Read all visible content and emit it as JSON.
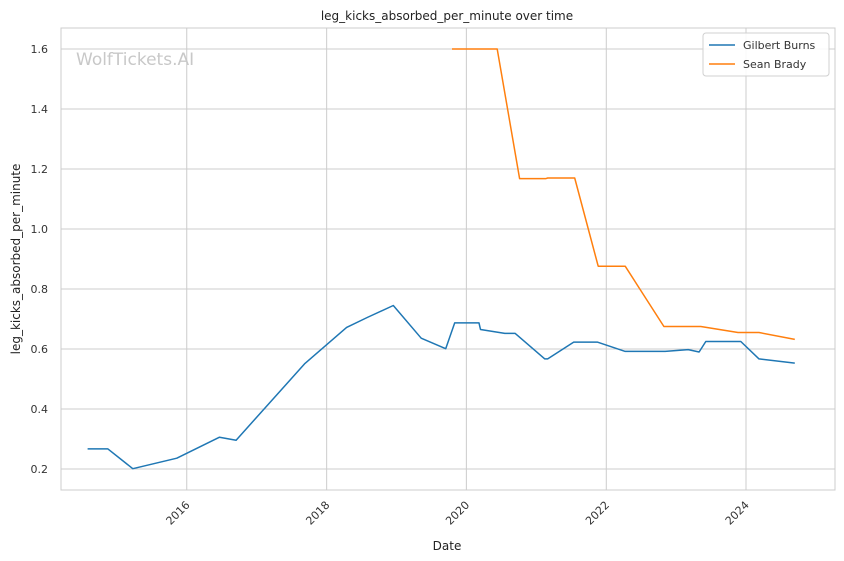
{
  "chart_data": {
    "type": "line",
    "title": "leg_kicks_absorbed_per_minute over time",
    "xlabel": "Date",
    "ylabel": "leg_kicks_absorbed_per_minute",
    "watermark": "WolfTickets.AI",
    "xlim": [
      "2014-03-15",
      "2025-04-10"
    ],
    "ylim": [
      0.13,
      1.67
    ],
    "x_ticks": [
      {
        "date": "2016-01-01",
        "label": "2016"
      },
      {
        "date": "2018-01-01",
        "label": "2018"
      },
      {
        "date": "2020-01-01",
        "label": "2020"
      },
      {
        "date": "2022-01-01",
        "label": "2022"
      },
      {
        "date": "2024-01-01",
        "label": "2024"
      }
    ],
    "y_ticks": [
      0.2,
      0.4,
      0.6,
      0.8,
      1.0,
      1.2,
      1.4,
      1.6
    ],
    "y_tick_labels": [
      "0.2",
      "0.4",
      "0.6",
      "0.8",
      "1.0",
      "1.2",
      "1.4",
      "1.6"
    ],
    "grid": true,
    "legend_position": "top-right",
    "series": [
      {
        "name": "Gilbert Burns",
        "color": "#1f77b4",
        "points": [
          [
            "2014-08-01",
            0.267
          ],
          [
            "2014-11-15",
            0.267
          ],
          [
            "2015-03-25",
            0.201
          ],
          [
            "2015-11-10",
            0.236
          ],
          [
            "2016-06-20",
            0.306
          ],
          [
            "2016-09-15",
            0.296
          ],
          [
            "2017-09-10",
            0.552
          ],
          [
            "2018-04-15",
            0.672
          ],
          [
            "2018-08-01",
            0.705
          ],
          [
            "2018-12-15",
            0.745
          ],
          [
            "2019-05-10",
            0.636
          ],
          [
            "2019-09-15",
            0.601
          ],
          [
            "2019-11-01",
            0.687
          ],
          [
            "2020-03-07",
            0.687
          ],
          [
            "2020-03-15",
            0.665
          ],
          [
            "2020-07-20",
            0.652
          ],
          [
            "2020-09-12",
            0.652
          ],
          [
            "2021-02-14",
            0.567
          ],
          [
            "2021-03-01",
            0.567
          ],
          [
            "2021-07-15",
            0.623
          ],
          [
            "2021-11-15",
            0.623
          ],
          [
            "2022-04-10",
            0.592
          ],
          [
            "2022-11-05",
            0.592
          ],
          [
            "2023-03-05",
            0.598
          ],
          [
            "2023-05-01",
            0.59
          ],
          [
            "2023-06-05",
            0.625
          ],
          [
            "2023-12-05",
            0.625
          ],
          [
            "2024-03-09",
            0.567
          ],
          [
            "2024-09-12",
            0.553
          ]
        ]
      },
      {
        "name": "Sean Brady",
        "color": "#ff7f0e",
        "points": [
          [
            "2019-10-18",
            1.6
          ],
          [
            "2020-06-10",
            1.6
          ],
          [
            "2020-10-05",
            1.168
          ],
          [
            "2021-02-20",
            1.168
          ],
          [
            "2021-03-01",
            1.17
          ],
          [
            "2021-07-20",
            1.17
          ],
          [
            "2021-11-20",
            0.876
          ],
          [
            "2022-04-10",
            0.876
          ],
          [
            "2022-10-29",
            0.675
          ],
          [
            "2023-05-10",
            0.675
          ],
          [
            "2023-11-20",
            0.655
          ],
          [
            "2024-03-09",
            0.655
          ],
          [
            "2024-09-12",
            0.632
          ]
        ]
      }
    ]
  }
}
